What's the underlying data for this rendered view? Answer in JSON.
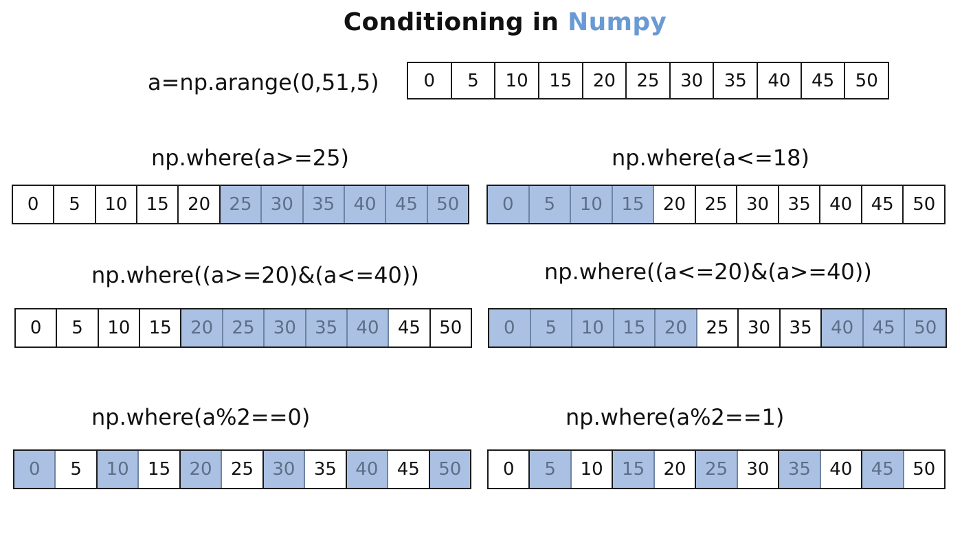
{
  "title": {
    "main": "Conditioning in ",
    "accent": "Numpy"
  },
  "colors": {
    "highlight_fill": "#aac1e3",
    "highlight_text": "#5c6f88",
    "title_accent": "#6a9ad4"
  },
  "source": {
    "label": "a=np.arange(0,51,5)",
    "values": [
      "0",
      "5",
      "10",
      "15",
      "20",
      "25",
      "30",
      "35",
      "40",
      "45",
      "50"
    ]
  },
  "panels": [
    {
      "id": "ge25",
      "label": "np.where(a>=25)",
      "values": [
        "0",
        "5",
        "10",
        "15",
        "20",
        "25",
        "30",
        "35",
        "40",
        "45",
        "50"
      ],
      "highlighted": [
        5,
        6,
        7,
        8,
        9,
        10
      ]
    },
    {
      "id": "le18",
      "label": "np.where(a<=18)",
      "values": [
        "0",
        "5",
        "10",
        "15",
        "20",
        "25",
        "30",
        "35",
        "40",
        "45",
        "50"
      ],
      "highlighted": [
        0,
        1,
        2,
        3
      ]
    },
    {
      "id": "range",
      "label": "np.where((a>=20)&(a<=40))",
      "values": [
        "0",
        "5",
        "10",
        "15",
        "20",
        "25",
        "30",
        "35",
        "40",
        "45",
        "50"
      ],
      "highlighted": [
        4,
        5,
        6,
        7,
        8
      ]
    },
    {
      "id": "outside",
      "label": "np.where((a<=20)&(a>=40))",
      "values": [
        "0",
        "5",
        "10",
        "15",
        "20",
        "25",
        "30",
        "35",
        "40",
        "45",
        "50"
      ],
      "highlighted": [
        0,
        1,
        2,
        3,
        4,
        8,
        9,
        10
      ]
    },
    {
      "id": "even",
      "label": "np.where(a%2==0)",
      "values": [
        "0",
        "5",
        "10",
        "15",
        "20",
        "25",
        "30",
        "35",
        "40",
        "45",
        "50"
      ],
      "highlighted": [
        0,
        2,
        4,
        6,
        8,
        10
      ]
    },
    {
      "id": "odd",
      "label": "np.where(a%2==1)",
      "values": [
        "0",
        "5",
        "10",
        "15",
        "20",
        "25",
        "30",
        "35",
        "40",
        "45",
        "50"
      ],
      "highlighted": [
        1,
        3,
        5,
        7,
        9
      ]
    }
  ]
}
